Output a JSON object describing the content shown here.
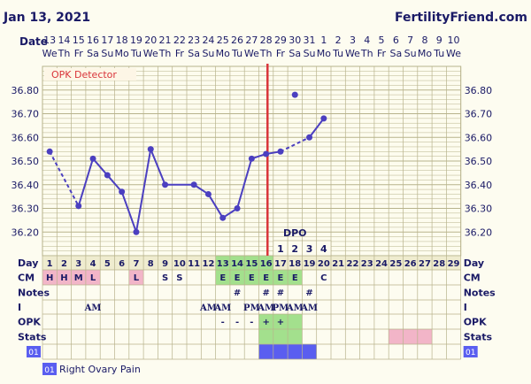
{
  "header": {
    "date": "Jan 13, 2021",
    "site": "FertilityFriend.com",
    "date_label": "Date"
  },
  "colors": {
    "line": "#4b3fc0",
    "coverline": "#d9343a",
    "grid": "#b8b38c",
    "green": "#a3e08d",
    "pink": "#f2b5c8",
    "blue": "#5a5ef0",
    "text": "#1a1a66"
  },
  "chart_data": {
    "type": "line",
    "x": [
      1,
      2,
      3,
      4,
      5,
      6,
      7,
      8,
      9,
      10,
      11,
      12,
      13,
      14,
      15,
      16,
      17,
      18,
      19,
      20,
      21,
      22,
      23,
      24,
      25,
      26,
      27,
      28,
      29
    ],
    "dates": [
      "13",
      "14",
      "15",
      "16",
      "17",
      "18",
      "19",
      "20",
      "21",
      "22",
      "23",
      "24",
      "25",
      "26",
      "27",
      "28",
      "29",
      "30",
      "31",
      "1",
      "2",
      "3",
      "4",
      "5",
      "6",
      "7",
      "8",
      "9",
      "10"
    ],
    "weekdays": [
      "We",
      "Th",
      "Fr",
      "Sa",
      "Su",
      "Mo",
      "Tu",
      "We",
      "Th",
      "Fr",
      "Sa",
      "Su",
      "Mo",
      "Tu",
      "We",
      "Th",
      "Fr",
      "Sa",
      "Su",
      "Mo",
      "Tu",
      "We",
      "Th",
      "Fr",
      "Sa",
      "Su",
      "Mo",
      "Tu",
      "We"
    ],
    "series": [
      {
        "values": [
          36.54,
          null,
          36.31,
          36.51,
          36.44,
          36.37,
          36.2,
          36.55,
          36.4,
          null,
          36.4,
          36.36,
          36.26,
          36.3,
          36.51,
          36.53,
          36.54,
          null,
          36.6,
          36.68,
          null,
          null,
          null,
          null,
          null,
          null,
          null,
          null,
          null
        ],
        "dashed_segments": [
          [
            1,
            3
          ],
          [
            8,
            11
          ],
          [
            17,
            19
          ]
        ]
      }
    ],
    "outlier": {
      "day": 18,
      "value": 36.78
    },
    "ylim": [
      36.1,
      36.9
    ],
    "yticks": [
      "36.80",
      "36.70",
      "36.60",
      "36.50",
      "36.40",
      "36.30",
      "36.20"
    ],
    "coverline_day": 16,
    "grid": true,
    "annotations": {
      "opk_detector": "OPK Detector",
      "dpo_label": "DPO",
      "dpo_numbers": [
        {
          "day": 17,
          "n": "1"
        },
        {
          "day": 18,
          "n": "2"
        },
        {
          "day": 19,
          "n": "3"
        },
        {
          "day": 20,
          "n": "4"
        }
      ]
    },
    "rows": {
      "day_label": "Day",
      "cm_label": "CM",
      "notes_label": "Notes",
      "i_label": "I",
      "opk_label": "OPK",
      "stats_label": "Stats",
      "cm": {
        "1": "H",
        "2": "H",
        "3": "M",
        "4": "L",
        "7": "L",
        "9": "S",
        "10": "S",
        "13": "E",
        "14": "E",
        "15": "E",
        "16": "E",
        "17": "E",
        "18": "E",
        "20": "C"
      },
      "cm_pink": [
        1,
        2,
        3,
        4,
        7
      ],
      "cm_green": [
        13,
        14,
        15,
        16,
        17,
        18
      ],
      "notes": {
        "14": "#",
        "16": "#",
        "17": "#",
        "19": "#"
      },
      "intercourse": {
        "4": "AM",
        "12": "AM",
        "13": "AM",
        "15": "PM",
        "16": "AM",
        "17": "PM",
        "18": "AM",
        "19": "AM"
      },
      "opk": {
        "13": "-",
        "14": "-",
        "15": "-",
        "16": "+",
        "17": "+"
      },
      "opk_green": [
        16,
        17,
        18
      ],
      "stats_green": [
        16,
        17,
        18
      ],
      "stats_pink": [
        25,
        26,
        27
      ],
      "symptom_days": [
        16,
        17,
        18,
        19
      ]
    },
    "symptom": {
      "code": "01",
      "label": "Right Ovary Pain"
    }
  }
}
